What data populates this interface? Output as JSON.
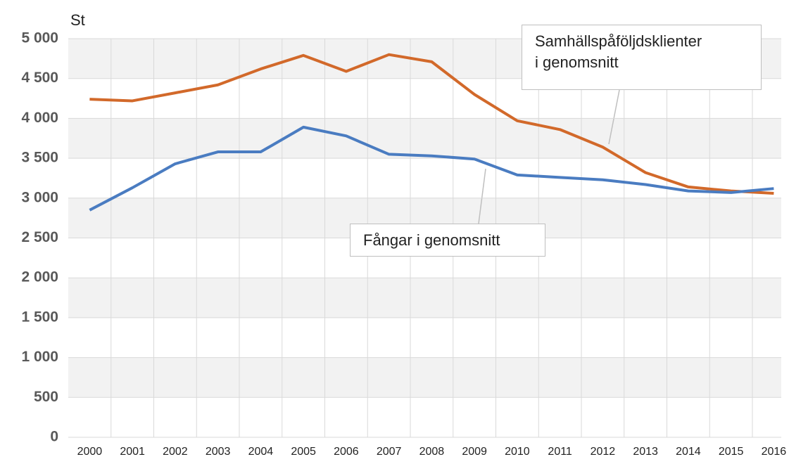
{
  "chart_data": {
    "type": "line",
    "y_label": "St",
    "categories": [
      "2000",
      "2001",
      "2002",
      "2003",
      "2004",
      "2005",
      "2006",
      "2007",
      "2008",
      "2009",
      "2010",
      "2011",
      "2012",
      "2013",
      "2014",
      "2015",
      "2016"
    ],
    "series": [
      {
        "name": "Samhällspåföljdsklienter\ni genomsnitt",
        "color": "#d2692a",
        "values": [
          4240,
          4220,
          4320,
          4420,
          4620,
          4790,
          4590,
          4800,
          4710,
          4300,
          3970,
          3860,
          3640,
          3320,
          3140,
          3090,
          3060
        ]
      },
      {
        "name": "Fångar i genomsnitt",
        "color": "#4a7cc1",
        "values": [
          2850,
          3130,
          3430,
          3580,
          3580,
          3890,
          3780,
          3550,
          3530,
          3490,
          3290,
          3260,
          3230,
          3170,
          3090,
          3070,
          3120
        ]
      }
    ],
    "ylim": [
      0,
      5000
    ],
    "yticks": [
      0,
      500,
      {
        "value": 1000,
        "label": "1 000"
      },
      {
        "value": 1500,
        "label": "1 500"
      },
      {
        "value": 2000,
        "label": "2 000"
      },
      {
        "value": 2500,
        "label": "2 500"
      },
      {
        "value": 3000,
        "label": "3 000"
      },
      {
        "value": 3500,
        "label": "3 500"
      },
      {
        "value": 4000,
        "label": "4 000"
      },
      {
        "value": 4500,
        "label": "4 500"
      },
      {
        "value": 5000,
        "label": "5 000"
      }
    ],
    "grid": true
  }
}
